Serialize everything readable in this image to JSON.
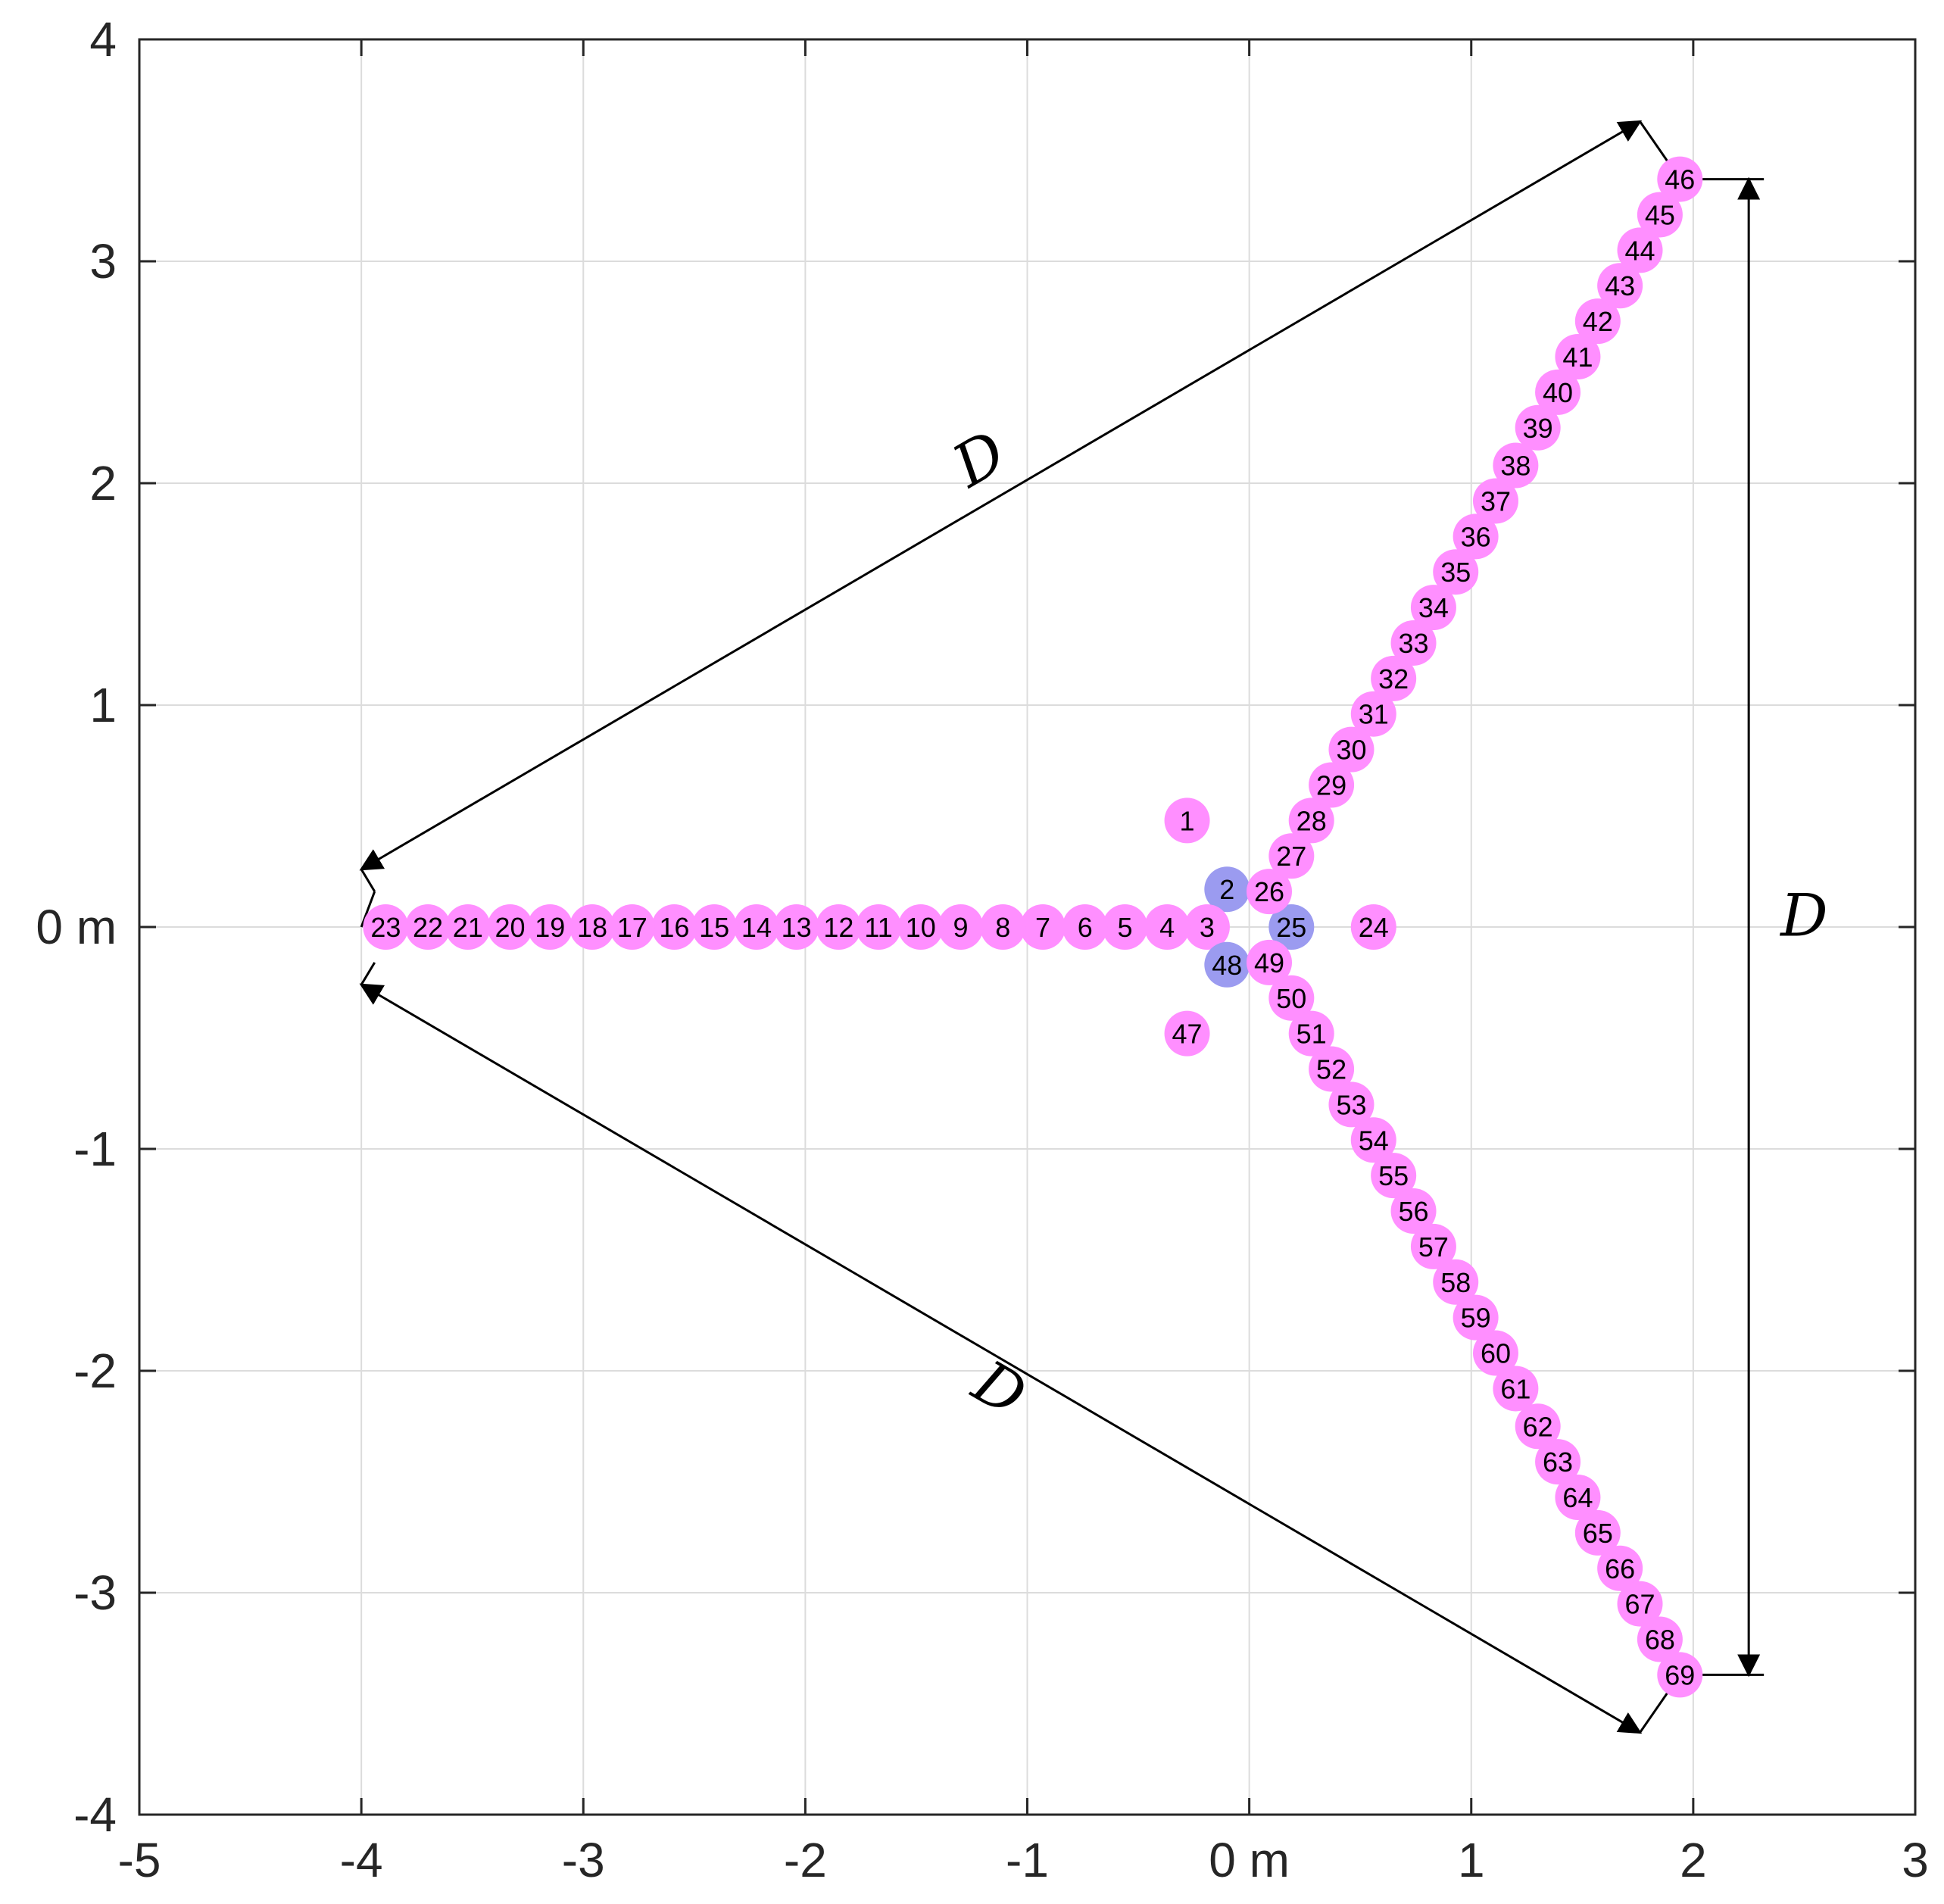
{
  "chart_data": {
    "type": "scatter",
    "title": "",
    "xlabel": "",
    "ylabel": "",
    "xlim": [
      -5,
      3
    ],
    "ylim": [
      -4,
      4
    ],
    "grid": true,
    "x_ticks": [
      {
        "v": -5,
        "label": "-5"
      },
      {
        "v": -4,
        "label": "-4"
      },
      {
        "v": -3,
        "label": "-3"
      },
      {
        "v": -2,
        "label": "-2"
      },
      {
        "v": -1,
        "label": "-1"
      },
      {
        "v": 0,
        "label": "0 m"
      },
      {
        "v": 1,
        "label": "1"
      },
      {
        "v": 2,
        "label": "2"
      },
      {
        "v": 3,
        "label": "3"
      }
    ],
    "y_ticks": [
      {
        "v": -4,
        "label": "-4"
      },
      {
        "v": -3,
        "label": "-3"
      },
      {
        "v": -2,
        "label": "-2"
      },
      {
        "v": -1,
        "label": "-1"
      },
      {
        "v": 0,
        "label": "0 m"
      },
      {
        "v": 1,
        "label": "1"
      },
      {
        "v": 2,
        "label": "2"
      },
      {
        "v": 3,
        "label": "3"
      },
      {
        "v": 4,
        "label": "4"
      }
    ],
    "colors": {
      "default": "#ff8fff",
      "highlight": "#9b9bf0",
      "grid": "#dcdcdc",
      "axis": "#262626"
    },
    "points": [
      {
        "id": "1",
        "x": -0.28,
        "y": 0.48
      },
      {
        "id": "2",
        "x": -0.1,
        "y": 0.17,
        "highlight": true
      },
      {
        "id": "3",
        "x": -0.19,
        "y": 0
      },
      {
        "id": "4",
        "x": -0.37,
        "y": 0
      },
      {
        "id": "5",
        "x": -0.56,
        "y": 0
      },
      {
        "id": "6",
        "x": -0.74,
        "y": 0
      },
      {
        "id": "7",
        "x": -0.93,
        "y": 0
      },
      {
        "id": "8",
        "x": -1.11,
        "y": 0
      },
      {
        "id": "9",
        "x": -1.3,
        "y": 0
      },
      {
        "id": "10",
        "x": -1.48,
        "y": 0
      },
      {
        "id": "11",
        "x": -1.67,
        "y": 0
      },
      {
        "id": "12",
        "x": -1.85,
        "y": 0
      },
      {
        "id": "13",
        "x": -2.04,
        "y": 0
      },
      {
        "id": "14",
        "x": -2.22,
        "y": 0
      },
      {
        "id": "15",
        "x": -2.41,
        "y": 0
      },
      {
        "id": "16",
        "x": -2.59,
        "y": 0
      },
      {
        "id": "17",
        "x": -2.78,
        "y": 0
      },
      {
        "id": "18",
        "x": -2.96,
        "y": 0
      },
      {
        "id": "19",
        "x": -3.15,
        "y": 0
      },
      {
        "id": "20",
        "x": -3.33,
        "y": 0
      },
      {
        "id": "21",
        "x": -3.52,
        "y": 0
      },
      {
        "id": "22",
        "x": -3.7,
        "y": 0
      },
      {
        "id": "23",
        "x": -3.89,
        "y": 0
      },
      {
        "id": "24",
        "x": 0.56,
        "y": 0
      },
      {
        "id": "25",
        "x": 0.19,
        "y": 0,
        "highlight": true
      },
      {
        "id": "26",
        "x": 0.09,
        "y": 0.16
      },
      {
        "id": "27",
        "x": 0.19,
        "y": 0.32
      },
      {
        "id": "28",
        "x": 0.28,
        "y": 0.48
      },
      {
        "id": "29",
        "x": 0.37,
        "y": 0.64
      },
      {
        "id": "30",
        "x": 0.46,
        "y": 0.8
      },
      {
        "id": "31",
        "x": 0.56,
        "y": 0.96
      },
      {
        "id": "32",
        "x": 0.65,
        "y": 1.12
      },
      {
        "id": "33",
        "x": 0.74,
        "y": 1.28
      },
      {
        "id": "34",
        "x": 0.83,
        "y": 1.44
      },
      {
        "id": "35",
        "x": 0.93,
        "y": 1.6
      },
      {
        "id": "36",
        "x": 1.02,
        "y": 1.76
      },
      {
        "id": "37",
        "x": 1.11,
        "y": 1.92
      },
      {
        "id": "38",
        "x": 1.2,
        "y": 2.08
      },
      {
        "id": "39",
        "x": 1.3,
        "y": 2.25
      },
      {
        "id": "40",
        "x": 1.39,
        "y": 2.41
      },
      {
        "id": "41",
        "x": 1.48,
        "y": 2.57
      },
      {
        "id": "42",
        "x": 1.57,
        "y": 2.73
      },
      {
        "id": "43",
        "x": 1.67,
        "y": 2.89
      },
      {
        "id": "44",
        "x": 1.76,
        "y": 3.05
      },
      {
        "id": "45",
        "x": 1.85,
        "y": 3.21
      },
      {
        "id": "46",
        "x": 1.94,
        "y": 3.37
      },
      {
        "id": "47",
        "x": -0.28,
        "y": -0.48
      },
      {
        "id": "48",
        "x": -0.1,
        "y": -0.17,
        "highlight": true
      },
      {
        "id": "49",
        "x": 0.09,
        "y": -0.16
      },
      {
        "id": "50",
        "x": 0.19,
        "y": -0.32
      },
      {
        "id": "51",
        "x": 0.28,
        "y": -0.48
      },
      {
        "id": "52",
        "x": 0.37,
        "y": -0.64
      },
      {
        "id": "53",
        "x": 0.46,
        "y": -0.8
      },
      {
        "id": "54",
        "x": 0.56,
        "y": -0.96
      },
      {
        "id": "55",
        "x": 0.65,
        "y": -1.12
      },
      {
        "id": "56",
        "x": 0.74,
        "y": -1.28
      },
      {
        "id": "57",
        "x": 0.83,
        "y": -1.44
      },
      {
        "id": "58",
        "x": 0.93,
        "y": -1.6
      },
      {
        "id": "59",
        "x": 1.02,
        "y": -1.76
      },
      {
        "id": "60",
        "x": 1.11,
        "y": -1.92
      },
      {
        "id": "61",
        "x": 1.2,
        "y": -2.08
      },
      {
        "id": "62",
        "x": 1.3,
        "y": -2.25
      },
      {
        "id": "63",
        "x": 1.39,
        "y": -2.41
      },
      {
        "id": "64",
        "x": 1.48,
        "y": -2.57
      },
      {
        "id": "65",
        "x": 1.57,
        "y": -2.73
      },
      {
        "id": "66",
        "x": 1.67,
        "y": -2.89
      },
      {
        "id": "67",
        "x": 1.76,
        "y": -3.05
      },
      {
        "id": "68",
        "x": 1.85,
        "y": -3.21
      },
      {
        "id": "69",
        "x": 1.94,
        "y": -3.37
      }
    ],
    "annotations": [
      {
        "label": "D",
        "from": [
          -4.0,
          0.26
        ],
        "to": [
          1.76,
          3.63
        ]
      },
      {
        "label": "D",
        "from": [
          -4.0,
          -0.26
        ],
        "to": [
          1.76,
          -3.63
        ]
      },
      {
        "label": "D",
        "from": [
          2.25,
          3.37
        ],
        "to": [
          2.25,
          -3.37
        ]
      }
    ]
  }
}
